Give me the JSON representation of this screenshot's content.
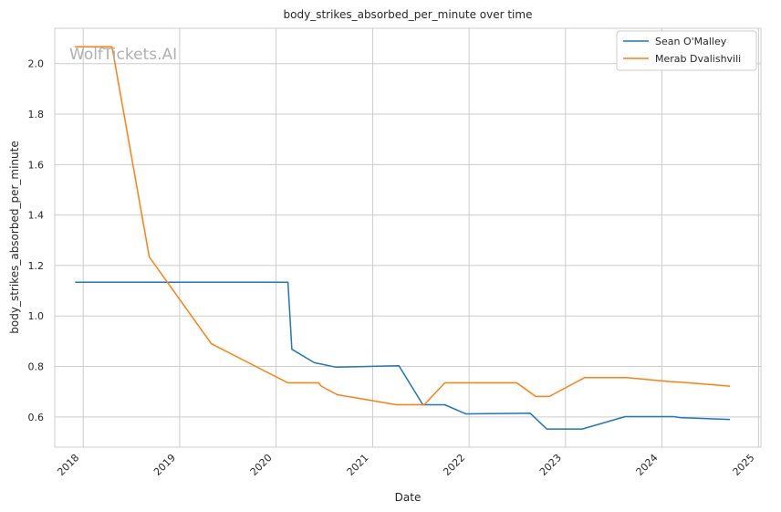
{
  "chart_data": {
    "type": "line",
    "title": "body_strikes_absorbed_per_minute over time",
    "xlabel": "Date",
    "ylabel": "body_strikes_absorbed_per_minute",
    "watermark": "WolfTickets.AI",
    "x_ticks": [
      "2018",
      "2019",
      "2020",
      "2021",
      "2022",
      "2023",
      "2024",
      "2025"
    ],
    "y_ticks": [
      "0.6",
      "0.8",
      "1.0",
      "1.2",
      "1.4",
      "1.6",
      "1.8",
      "2.0"
    ],
    "xlim": [
      "2017-09-15",
      "2025-01-10"
    ],
    "ylim": [
      0.48,
      2.14
    ],
    "grid": true,
    "legend_position": "top-right",
    "colors": {
      "series_1": "#1f77b4",
      "series_2": "#ff7f0e"
    },
    "series": [
      {
        "name": "Sean O'Malley",
        "color": "#1f77b4",
        "points": [
          [
            "2017-12-01",
            1.134
          ],
          [
            "2020-02-15",
            1.134
          ],
          [
            "2020-03-01",
            0.868
          ],
          [
            "2020-05-25",
            0.815
          ],
          [
            "2020-08-15",
            0.797
          ],
          [
            "2021-04-10",
            0.803
          ],
          [
            "2021-07-10",
            0.648
          ],
          [
            "2021-10-01",
            0.648
          ],
          [
            "2021-12-20",
            0.612
          ],
          [
            "2022-08-20",
            0.615
          ],
          [
            "2022-10-22",
            0.552
          ],
          [
            "2023-03-05",
            0.552
          ],
          [
            "2023-08-15",
            0.601
          ],
          [
            "2024-02-15",
            0.601
          ],
          [
            "2024-03-10",
            0.597
          ],
          [
            "2024-09-15",
            0.59
          ]
        ]
      },
      {
        "name": "Merab Dvalishvili",
        "color": "#ff7f0e",
        "points": [
          [
            "2017-12-01",
            2.067
          ],
          [
            "2018-04-20",
            2.067
          ],
          [
            "2018-09-08",
            1.234
          ],
          [
            "2019-05-01",
            0.89
          ],
          [
            "2020-02-15",
            0.735
          ],
          [
            "2020-06-10",
            0.735
          ],
          [
            "2020-06-20",
            0.722
          ],
          [
            "2020-08-20",
            0.688
          ],
          [
            "2021-04-01",
            0.648
          ],
          [
            "2021-07-15",
            0.648
          ],
          [
            "2021-10-01",
            0.735
          ],
          [
            "2022-07-01",
            0.735
          ],
          [
            "2022-09-10",
            0.681
          ],
          [
            "2022-11-01",
            0.681
          ],
          [
            "2023-03-15",
            0.756
          ],
          [
            "2023-08-20",
            0.756
          ],
          [
            "2024-02-01",
            0.74
          ],
          [
            "2024-03-10",
            0.738
          ],
          [
            "2024-09-15",
            0.722
          ]
        ]
      }
    ]
  }
}
